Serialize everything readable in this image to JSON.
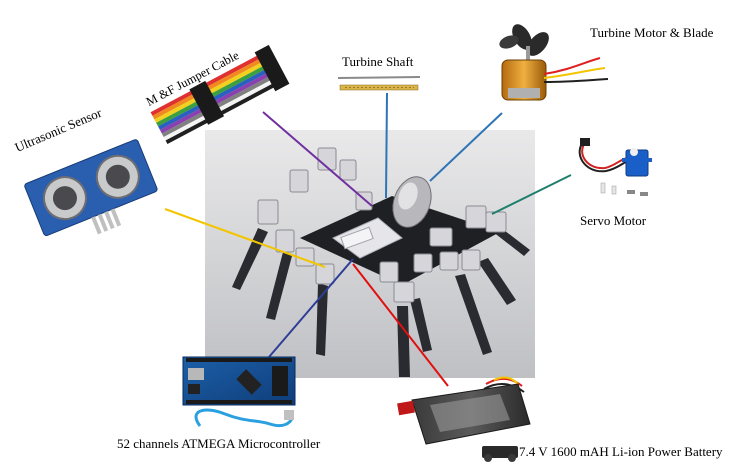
{
  "labels": {
    "ultrasonic": "Ultrasonic Sensor",
    "jumper_cable": "M &F Jumper Cable",
    "turbine_shaft": "Turbine Shaft",
    "turbine_motor": "Turbine Motor & Blade",
    "servo_motor": "Servo Motor",
    "microcontroller": "52 channels ATMEGA Microcontroller",
    "battery": "7.4 V 1600 mAH Li-ion Power Battery"
  },
  "colors": {
    "ultrasonic_line": "#f2c500",
    "cable_line": "#7030a0",
    "shaft_line": "#2e75b6",
    "turbine_line": "#2e75b6",
    "servo_line": "#1f7f6f",
    "mcu_line": "#2f3d99",
    "battery_line": "#e01010"
  }
}
